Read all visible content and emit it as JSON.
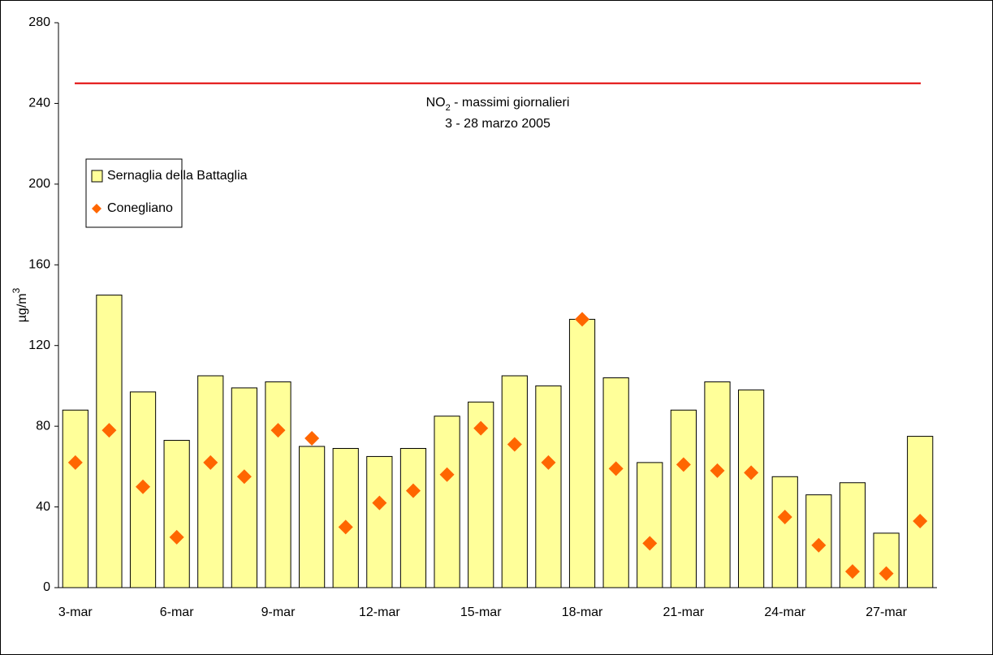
{
  "chart_data": {
    "type": "bar_scatter",
    "title_prefix": "NO",
    "title_subscript": "2",
    "title_suffix": " - massimi giornalieri",
    "subtitle": "3 - 28 marzo 2005",
    "y_label": "µg/m",
    "y_label_superscript": "3",
    "categories": [
      "3-mar",
      null,
      null,
      "6-mar",
      null,
      null,
      "9-mar",
      null,
      null,
      "12-mar",
      null,
      null,
      "15-mar",
      null,
      null,
      "18-mar",
      null,
      null,
      "21-mar",
      null,
      null,
      "24-mar",
      null,
      null,
      "27-mar",
      null
    ],
    "series": [
      {
        "name": "Sernaglia della Battaglia",
        "type": "bar",
        "color": "#ffff99",
        "values": [
          88,
          145,
          97,
          73,
          105,
          99,
          102,
          70,
          69,
          65,
          69,
          85,
          92,
          105,
          100,
          133,
          104,
          62,
          88,
          102,
          98,
          55,
          46,
          52,
          27,
          75
        ]
      },
      {
        "name": "Conegliano",
        "type": "scatter",
        "color": "#ff6600",
        "values": [
          62,
          78,
          50,
          25,
          62,
          55,
          78,
          74,
          30,
          42,
          48,
          56,
          79,
          71,
          62,
          133,
          59,
          22,
          61,
          58,
          57,
          35,
          21,
          8,
          7,
          33
        ]
      }
    ],
    "reference_line": {
      "value": 250,
      "color": "#e00000"
    },
    "ylim": [
      0,
      280
    ],
    "yticks": [
      0,
      40,
      80,
      120,
      160,
      200,
      240,
      280
    ],
    "grid": false,
    "legend": "upper-left"
  }
}
